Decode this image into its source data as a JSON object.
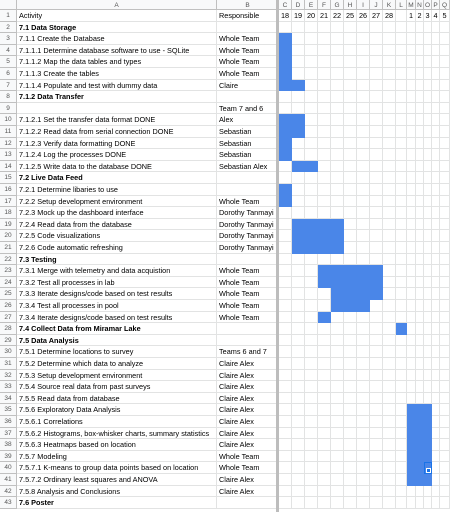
{
  "sheet": {
    "columns": [
      "A",
      "B",
      "C",
      "D",
      "E",
      "F",
      "G",
      "H",
      "I",
      "J",
      "K",
      "L",
      "M",
      "N",
      "O",
      "P",
      "Q"
    ],
    "dates": [
      18,
      19,
      20,
      21,
      22,
      25,
      26,
      27,
      28,
      null,
      1,
      2,
      3,
      4,
      5
    ],
    "bar_color": "#4a86e8",
    "selected": {
      "row": 40,
      "column": 14
    },
    "rows": [
      {
        "n": 1,
        "activity": "Activity",
        "responsible": "Responsible"
      },
      {
        "n": 2,
        "activity": "7.1 Data Storage",
        "bold": true
      },
      {
        "n": 3,
        "activity": "7.1.1 Create the Database",
        "responsible": "Whole Team",
        "span": [
          0,
          0
        ]
      },
      {
        "n": 4,
        "activity": "7.1.1.1 Determine database software to use - SQLite",
        "responsible": "Whole Team",
        "span": [
          0,
          0
        ]
      },
      {
        "n": 5,
        "activity": "7.1.1.2 Map the data tables and types",
        "responsible": "Whole Team",
        "span": [
          0,
          0
        ]
      },
      {
        "n": 6,
        "activity": "7.1.1.3 Create the tables",
        "responsible": "Whole Team",
        "span": [
          0,
          0
        ]
      },
      {
        "n": 7,
        "activity": "7.1.1.4 Populate and test with dummy data",
        "responsible": "Claire",
        "span": [
          0,
          1
        ]
      },
      {
        "n": 8,
        "activity": "7.1.2 Data Transfer",
        "bold": true
      },
      {
        "n": 9,
        "responsible": "Team 7 and 6"
      },
      {
        "n": 10,
        "activity": "7.1.2.1 Set the transfer data format DONE",
        "responsible": "Alex",
        "span": [
          0,
          1
        ]
      },
      {
        "n": 11,
        "activity": "7.1.2.2 Read data from serial connection DONE",
        "responsible": "Sebastian",
        "span": [
          0,
          1
        ]
      },
      {
        "n": 12,
        "activity": "7.1.2.3 Verify data formatting DONE",
        "responsible": "Sebastian",
        "span": [
          0,
          0
        ]
      },
      {
        "n": 13,
        "activity": "7.1.2.4 Log the processes DONE",
        "responsible": "Sebastian",
        "span": [
          0,
          0
        ]
      },
      {
        "n": 14,
        "activity": "7.1.2.5 Write data to the database DONE",
        "responsible": "Sebastian Alex",
        "span": [
          1,
          2
        ]
      },
      {
        "n": 15,
        "activity": "7.2 Live Data Feed",
        "bold": true
      },
      {
        "n": 16,
        "activity": "7.2.1 Determine libaries to use",
        "span": [
          0,
          0
        ]
      },
      {
        "n": 17,
        "activity": "7.2.2 Setup development environment",
        "responsible": "Whole Team",
        "span": [
          0,
          0
        ]
      },
      {
        "n": 18,
        "activity": "7.2.3 Mock up the dashboard interface",
        "responsible": "Dorothy Tanmayi"
      },
      {
        "n": 19,
        "activity": "7.2.4 Read data from the database",
        "responsible": "Dorothy Tanmayi",
        "span": [
          1,
          4
        ]
      },
      {
        "n": 20,
        "activity": "7.2.5 Code visualizations",
        "responsible": "Dorothy Tanmayi",
        "span": [
          1,
          4
        ]
      },
      {
        "n": 21,
        "activity": "7.2.6 Code automatic refreshing",
        "responsible": "Dorothy Tanmayi",
        "span": [
          1,
          4
        ]
      },
      {
        "n": 22,
        "activity": "7.3 Testing",
        "bold": true
      },
      {
        "n": 23,
        "activity": "7.3.1 Merge with telemetry and data acquistion",
        "responsible": "Whole Team",
        "span": [
          3,
          7
        ]
      },
      {
        "n": 24,
        "activity": "7.3.2 Test all processes in lab",
        "responsible": "Whole Team",
        "span": [
          3,
          7
        ]
      },
      {
        "n": 25,
        "activity": "7.3.3 Iterate designs/code based on test results",
        "responsible": "Whole Team",
        "span": [
          4,
          7
        ]
      },
      {
        "n": 26,
        "activity": "7.3.4 Test all processes in pool",
        "responsible": "Whole Team",
        "span": [
          4,
          6
        ]
      },
      {
        "n": 27,
        "activity": "7.3.4 Iterate designs/code based on test results",
        "responsible": "Whole Team",
        "span": [
          3,
          3
        ]
      },
      {
        "n": 28,
        "activity": "7.4 Collect Data from Miramar Lake",
        "bold": true,
        "span": [
          9,
          9
        ]
      },
      {
        "n": 29,
        "activity": "7.5 Data Analysis",
        "bold": true
      },
      {
        "n": 30,
        "activity": "7.5.1 Determine locations to survey",
        "responsible": "Teams 6 and 7"
      },
      {
        "n": 31,
        "activity": "7.5.2 Determine which data to analyze",
        "responsible": "Claire Alex"
      },
      {
        "n": 32,
        "activity": "7.5.3 Setup development environment",
        "responsible": "Claire Alex"
      },
      {
        "n": 33,
        "activity": "7.5.4 Source real data from past surveys",
        "responsible": "Claire Alex"
      },
      {
        "n": 34,
        "activity": "7.5.5 Read data from database",
        "responsible": "Claire Alex"
      },
      {
        "n": 35,
        "activity": "7.5.6 Exploratory Data Analysis",
        "responsible": "Claire Alex",
        "span": [
          10,
          12
        ]
      },
      {
        "n": 36,
        "activity": "7.5.6.1 Correlations",
        "responsible": "Claire Alex",
        "span": [
          10,
          12
        ]
      },
      {
        "n": 37,
        "activity": "7.5.6.2 Histograms, box-whisker charts, summary statistics",
        "responsible": "Claire Alex",
        "span": [
          10,
          12
        ]
      },
      {
        "n": 38,
        "activity": "7.5.6.3 Heatmaps based on location",
        "responsible": "Claire Alex",
        "span": [
          10,
          12
        ]
      },
      {
        "n": 39,
        "activity": "7.5.7 Modeling",
        "responsible": "Whole Team",
        "span": [
          10,
          12
        ]
      },
      {
        "n": 40,
        "activity": "7.5.7.1 K-means to group data points based on location",
        "responsible": "Whole Team",
        "span": [
          10,
          12
        ]
      },
      {
        "n": 41,
        "activity": "7.5.7.2 Ordinary least squares and ANOVA",
        "responsible": "Claire Alex",
        "span": [
          10,
          12
        ]
      },
      {
        "n": 42,
        "activity": "7.5.8 Analysis and Conclusions",
        "responsible": "Claire Alex"
      },
      {
        "n": 43,
        "activity": "7.6 Poster",
        "bold": true
      }
    ]
  }
}
